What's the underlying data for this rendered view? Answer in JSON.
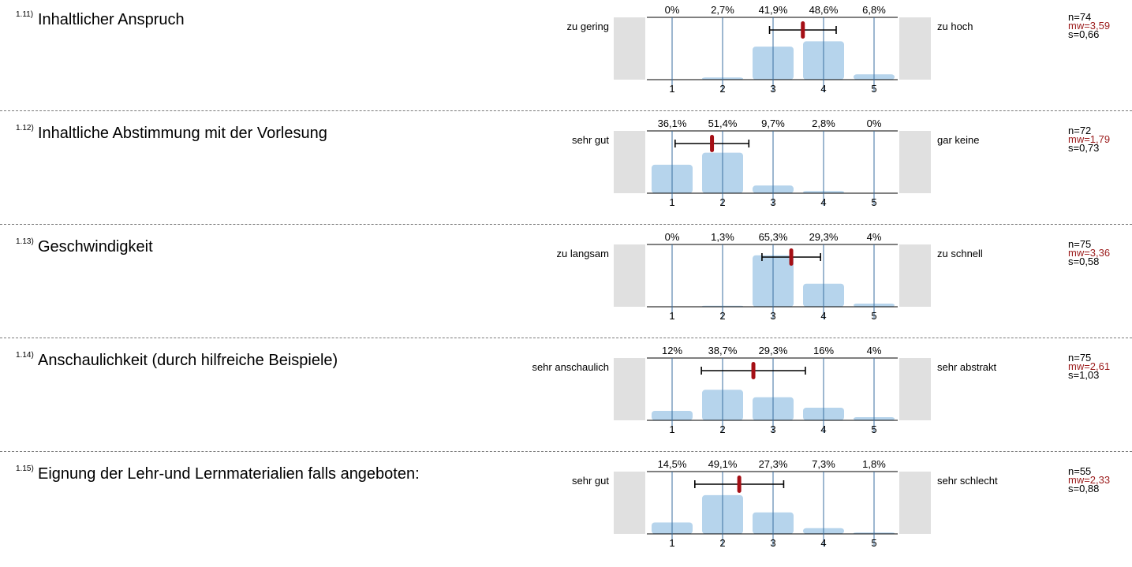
{
  "colors": {
    "bar": "#b6d4ec",
    "gridline": "#3b6fa0",
    "mean_marker": "#a50f15",
    "side_panel": "#e0e0e0",
    "mw_text": "#9b1b1b"
  },
  "chart_data": [
    {
      "type": "bar",
      "number": "1.11)",
      "title": "Inhaltlicher Anspruch",
      "left_label": "zu gering",
      "right_label": "zu hoch",
      "categories": [
        "1",
        "2",
        "3",
        "4",
        "5"
      ],
      "percent_labels": [
        "0%",
        "2,7%",
        "41,9%",
        "48,6%",
        "6,8%"
      ],
      "values": [
        0,
        2.7,
        41.9,
        48.6,
        6.8
      ],
      "mean": 3.59,
      "sd": 0.66,
      "n_label": "n=74",
      "mw_label": "mw=3,59",
      "s_label": "s=0,66"
    },
    {
      "type": "bar",
      "number": "1.12)",
      "title": "Inhaltliche Abstimmung mit der Vorlesung",
      "left_label": "sehr gut",
      "right_label": "gar keine",
      "categories": [
        "1",
        "2",
        "3",
        "4",
        "5"
      ],
      "percent_labels": [
        "36,1%",
        "51,4%",
        "9,7%",
        "2,8%",
        "0%"
      ],
      "values": [
        36.1,
        51.4,
        9.7,
        2.8,
        0
      ],
      "mean": 1.79,
      "sd": 0.73,
      "n_label": "n=72",
      "mw_label": "mw=1,79",
      "s_label": "s=0,73"
    },
    {
      "type": "bar",
      "number": "1.13)",
      "title": "Geschwindigkeit",
      "left_label": "zu langsam",
      "right_label": "zu schnell",
      "categories": [
        "1",
        "2",
        "3",
        "4",
        "5"
      ],
      "percent_labels": [
        "0%",
        "1,3%",
        "65,3%",
        "29,3%",
        "4%"
      ],
      "values": [
        0,
        1.3,
        65.3,
        29.3,
        4
      ],
      "mean": 3.36,
      "sd": 0.58,
      "n_label": "n=75",
      "mw_label": "mw=3,36",
      "s_label": "s=0,58"
    },
    {
      "type": "bar",
      "number": "1.14)",
      "title": "Anschaulichkeit (durch hilfreiche Beispiele)",
      "left_label": "sehr anschaulich",
      "right_label": "sehr abstrakt",
      "categories": [
        "1",
        "2",
        "3",
        "4",
        "5"
      ],
      "percent_labels": [
        "12%",
        "38,7%",
        "29,3%",
        "16%",
        "4%"
      ],
      "values": [
        12,
        38.7,
        29.3,
        16,
        4
      ],
      "mean": 2.61,
      "sd": 1.03,
      "n_label": "n=75",
      "mw_label": "mw=2,61",
      "s_label": "s=1,03"
    },
    {
      "type": "bar",
      "number": "1.15)",
      "title": "Eignung der Lehr-und Lernmaterialien falls angeboten:",
      "left_label": "sehr gut",
      "right_label": "sehr schlecht",
      "categories": [
        "1",
        "2",
        "3",
        "4",
        "5"
      ],
      "percent_labels": [
        "14,5%",
        "49,1%",
        "27,3%",
        "7,3%",
        "1,8%"
      ],
      "values": [
        14.5,
        49.1,
        27.3,
        7.3,
        1.8
      ],
      "mean": 2.33,
      "sd": 0.88,
      "n_label": "n=55",
      "mw_label": "mw=2,33",
      "s_label": "s=0,88"
    }
  ]
}
